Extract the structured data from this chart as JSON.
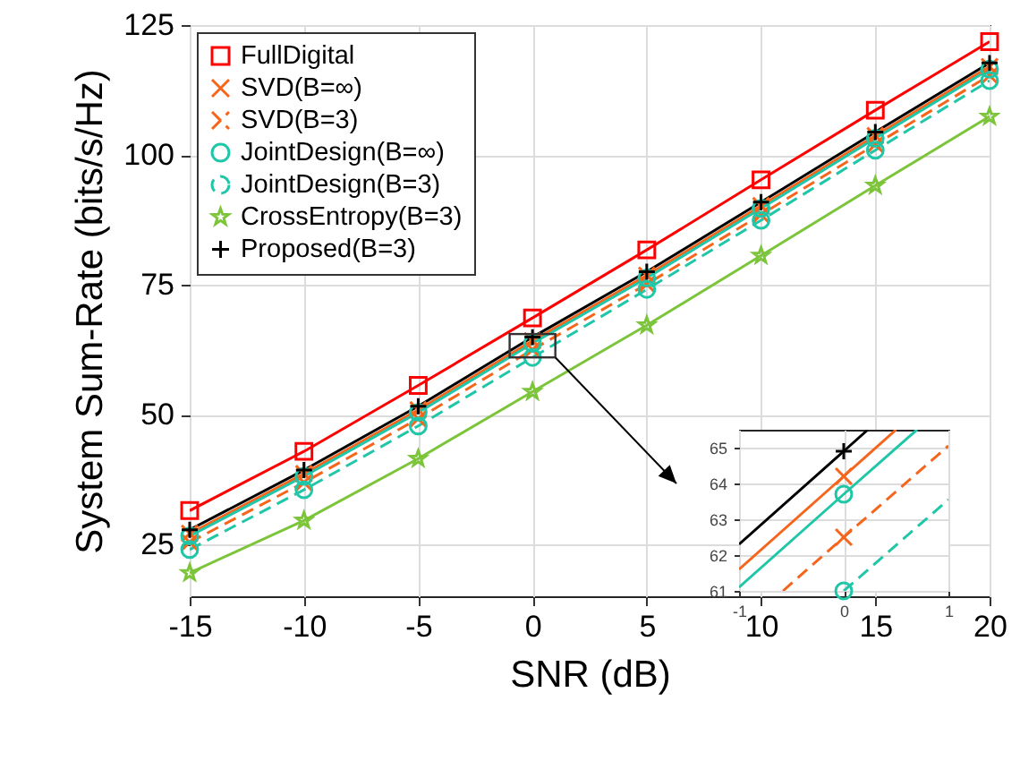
{
  "chart_data": [
    {
      "type": "line",
      "xlabel": "SNR (dB)",
      "ylabel": "System Sum-Rate (bits/s/Hz)",
      "x": [
        -15,
        -10,
        -5,
        0,
        5,
        10,
        15,
        20
      ],
      "xlim": [
        -15,
        20
      ],
      "xticks": [
        -15,
        -10,
        -5,
        0,
        5,
        10,
        15,
        20
      ],
      "ylim": [
        15,
        125
      ],
      "yticks": [
        25,
        50,
        75,
        100,
        125
      ],
      "grid": true,
      "legend": "top left",
      "series": [
        {
          "name": "FullDigital",
          "color": "#ff0000",
          "line_style": "solid",
          "marker": "square",
          "values": [
            31.5,
            42.9,
            55.6,
            68.6,
            81.7,
            95.2,
            108.6,
            121.8
          ]
        },
        {
          "name": "SVD(B=∞)",
          "color": "#f5651c",
          "line_style": "solid",
          "marker": "cross",
          "values": [
            27.1,
            38.6,
            50.9,
            64.2,
            76.8,
            90.2,
            103.7,
            117.0
          ]
        },
        {
          "name": "SVD(B=3)",
          "color": "#f5651c",
          "line_style": "dashed",
          "marker": "cross",
          "values": [
            25.4,
            36.9,
            49.2,
            62.5,
            75.1,
            88.5,
            102.0,
            115.3
          ]
        },
        {
          "name": "JointDesign(B=∞)",
          "color": "#1fc6a7",
          "line_style": "solid",
          "marker": "circle",
          "values": [
            26.6,
            38.1,
            50.4,
            63.7,
            76.3,
            89.7,
            103.2,
            116.5
          ]
        },
        {
          "name": "JointDesign(B=3)",
          "color": "#1fc6a7",
          "line_style": "dashed",
          "marker": "circle",
          "values": [
            24.0,
            35.5,
            47.8,
            61.0,
            74.1,
            87.4,
            100.9,
            114.3
          ]
        },
        {
          "name": "CrossEntropy(B=3)",
          "color": "#7cc53b",
          "line_style": "solid",
          "marker": "star",
          "values": [
            19.5,
            29.6,
            41.5,
            54.4,
            67.2,
            80.6,
            94.1,
            107.4
          ]
        },
        {
          "name": "Proposed(B=3)",
          "color": "#000000",
          "line_style": "solid",
          "marker": "plus",
          "values": [
            27.8,
            39.3,
            51.6,
            64.9,
            77.5,
            90.9,
            104.4,
            117.7
          ]
        }
      ]
    },
    {
      "type": "line",
      "xlim": [
        -1,
        1
      ],
      "xticks": [
        -1,
        0,
        1
      ],
      "ylim": [
        61,
        65.5
      ],
      "yticks": [
        61,
        62,
        63,
        64,
        65
      ],
      "grid": true,
      "series": [
        {
          "color": "#000000",
          "line_style": "solid",
          "marker": "none",
          "x": [
            -1,
            0,
            0.23
          ],
          "values": [
            62.3,
            64.9,
            65.5
          ]
        },
        {
          "color": "#f5651c",
          "line_style": "solid",
          "marker": "none",
          "x": [
            -1,
            0,
            0.5
          ],
          "values": [
            61.6,
            64.2,
            65.5
          ]
        },
        {
          "color": "#1fc6a7",
          "line_style": "solid",
          "marker": "none",
          "x": [
            -1,
            0,
            0.7
          ],
          "values": [
            61.1,
            63.7,
            65.5
          ]
        },
        {
          "color": "#f5651c",
          "line_style": "dashed",
          "marker": "none",
          "x": [
            -0.58,
            0,
            1
          ],
          "values": [
            61,
            62.5,
            65.05
          ]
        },
        {
          "color": "#1fc6a7",
          "line_style": "dashed",
          "marker": "none",
          "x": [
            0,
            1
          ],
          "values": [
            61,
            63.55
          ]
        },
        {
          "type": "scatter",
          "color": "#000000",
          "marker": "plus",
          "x": [
            0
          ],
          "values": [
            64.9
          ]
        },
        {
          "type": "scatter",
          "color": "#f5651c",
          "marker": "cross",
          "x": [
            0
          ],
          "values": [
            64.2
          ]
        },
        {
          "type": "scatter",
          "color": "#1fc6a7",
          "marker": "circle",
          "x": [
            0
          ],
          "values": [
            63.7
          ]
        },
        {
          "type": "scatter",
          "color": "#f5651c",
          "marker": "cross",
          "x": [
            0
          ],
          "values": [
            62.5
          ]
        },
        {
          "type": "scatter",
          "color": "#1fc6a7",
          "marker": "circle",
          "x": [
            0
          ],
          "values": [
            61
          ]
        }
      ]
    }
  ]
}
